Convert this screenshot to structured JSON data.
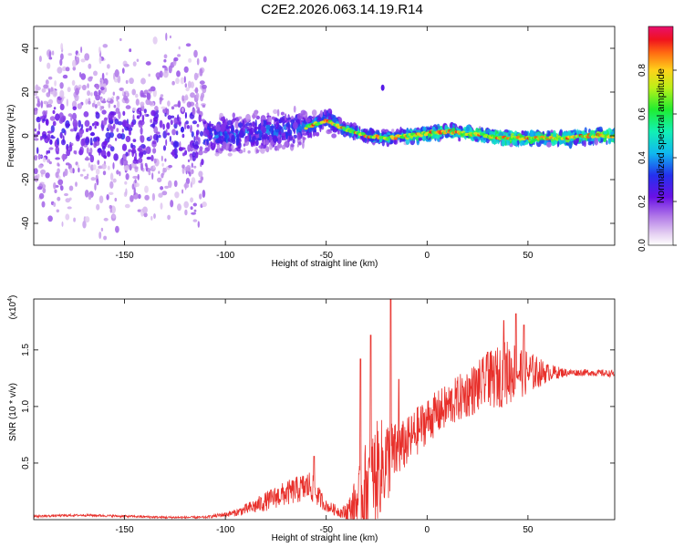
{
  "title": "C2E2.2026.063.14.19.R14",
  "chart_data": [
    {
      "type": "heatmap",
      "title": "C2E2.2026.063.14.19.R14",
      "xlabel": "Height of straight line (km)",
      "ylabel": "Frequency (Hz)",
      "xlim": [
        -195,
        93
      ],
      "ylim": [
        -50,
        50
      ],
      "xticks": [
        -150,
        -100,
        -50,
        0,
        50
      ],
      "yticks": [
        -40,
        -20,
        0,
        20,
        40
      ],
      "grid": false,
      "colorbar": {
        "label": "Normalized spectral amplitude",
        "range": [
          0.0,
          1.0
        ],
        "ticks": [
          0.0,
          0.2,
          0.4,
          0.6,
          0.8
        ],
        "tick_labels": [
          "0.0",
          "0.2",
          "0.4",
          "0.6",
          "0.8"
        ],
        "colormap": "rainbow (white/violet → blue → cyan → green → yellow → red)"
      },
      "ridge_frequency_hz": {
        "x": [
          -195,
          -150,
          -110,
          -80,
          -60,
          -50,
          -40,
          -30,
          -20,
          -10,
          0,
          10,
          20,
          30,
          40,
          50,
          60,
          70,
          80,
          93
        ],
        "y": [
          2,
          0,
          0,
          2,
          4,
          7,
          3,
          0,
          -1,
          0,
          1,
          2,
          1,
          0,
          -1,
          -1,
          -1,
          -1,
          0,
          0
        ]
      }
    },
    {
      "type": "line",
      "xlabel": "Height of straight line (km)",
      "ylabel": "SNR (10 * v/v)",
      "ylabel_multiplier": "(x10",
      "ylabel_exponent": "4",
      "ylabel_multiplier_close": ")",
      "xlim": [
        -195,
        93
      ],
      "ylim": [
        0,
        1.95
      ],
      "xticks": [
        -150,
        -100,
        -50,
        0,
        50
      ],
      "yticks": [
        0.5,
        1.0,
        1.5
      ],
      "ytick_labels": [
        "0.5",
        "1.0",
        "1.5"
      ],
      "color": "#e8302b",
      "series": [
        {
          "name": "SNR",
          "envelope_x": [
            -195,
            -170,
            -130,
            -110,
            -95,
            -85,
            -75,
            -65,
            -58,
            -50,
            -42,
            -38,
            -34,
            -30,
            -25,
            -20,
            -15,
            -10,
            -5,
            0,
            10,
            20,
            30,
            40,
            45,
            50,
            60,
            70,
            80,
            93
          ],
          "envelope_y": [
            0.03,
            0.04,
            0.02,
            0.02,
            0.06,
            0.12,
            0.2,
            0.26,
            0.3,
            0.12,
            0.06,
            0.08,
            0.18,
            0.3,
            0.42,
            0.52,
            0.6,
            0.68,
            0.78,
            0.88,
            1.0,
            1.12,
            1.22,
            1.3,
            1.32,
            1.3,
            1.3,
            1.3,
            1.3,
            1.29
          ],
          "noise_amplitude": [
            0.01,
            0.01,
            0.01,
            0.01,
            0.03,
            0.07,
            0.1,
            0.12,
            0.14,
            0.05,
            0.05,
            0.15,
            0.28,
            0.42,
            0.45,
            0.4,
            0.25,
            0.22,
            0.22,
            0.2,
            0.2,
            0.22,
            0.25,
            0.3,
            0.25,
            0.2,
            0.08,
            0.03,
            0.03,
            0.03
          ],
          "peaks": [
            {
              "x": -56,
              "y": 0.56
            },
            {
              "x": -33,
              "y": 1.42
            },
            {
              "x": -28,
              "y": 1.63
            },
            {
              "x": -18,
              "y": 1.97
            },
            {
              "x": -14,
              "y": 1.24
            },
            {
              "x": 30,
              "y": 1.48
            },
            {
              "x": 38,
              "y": 1.76
            },
            {
              "x": 44,
              "y": 1.82
            },
            {
              "x": 48,
              "y": 1.72
            }
          ]
        }
      ]
    }
  ]
}
